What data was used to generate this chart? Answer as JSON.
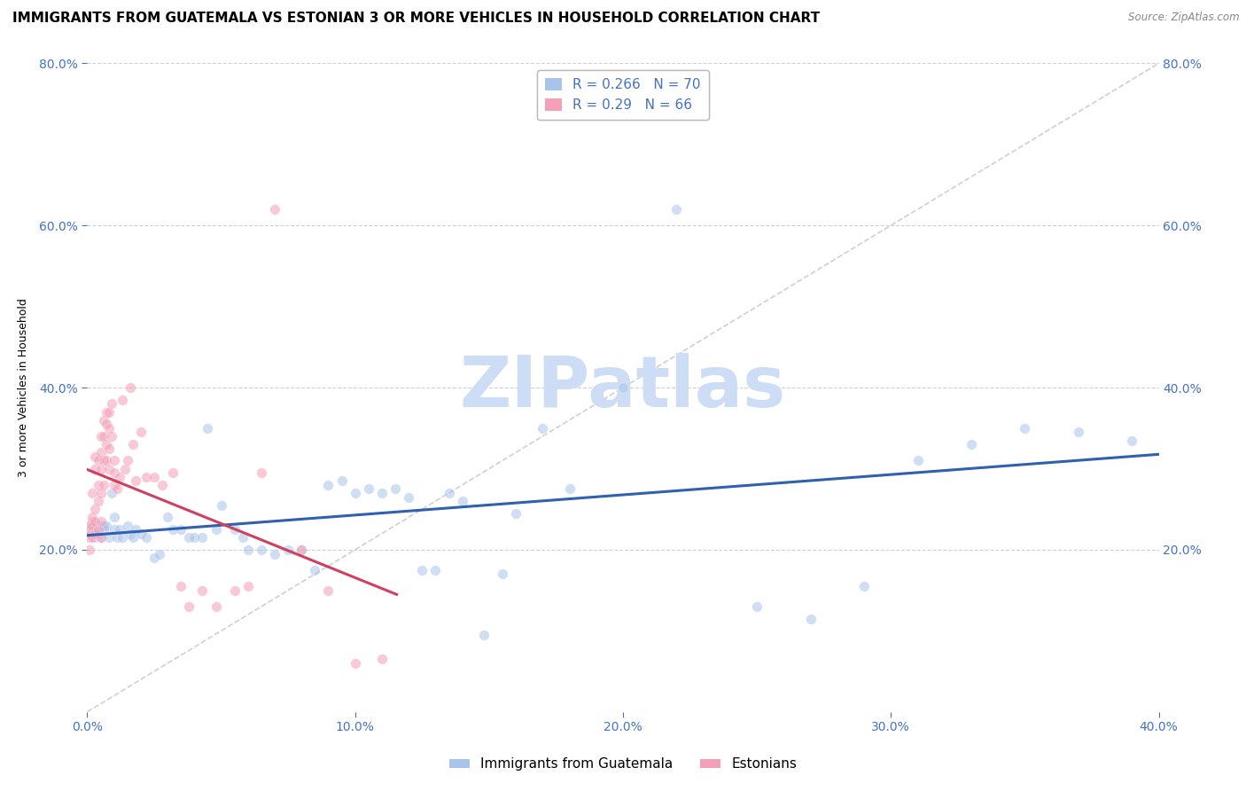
{
  "title": "IMMIGRANTS FROM GUATEMALA VS ESTONIAN 3 OR MORE VEHICLES IN HOUSEHOLD CORRELATION CHART",
  "source": "Source: ZipAtlas.com",
  "ylabel": "3 or more Vehicles in Household",
  "xlim": [
    0.0,
    0.4
  ],
  "ylim": [
    0.0,
    0.8
  ],
  "xticks": [
    0.0,
    0.1,
    0.2,
    0.3,
    0.4
  ],
  "yticks": [
    0.2,
    0.4,
    0.6,
    0.8
  ],
  "xticklabels": [
    "0.0%",
    "10.0%",
    "20.0%",
    "30.0%",
    "40.0%"
  ],
  "yticklabels": [
    "20.0%",
    "40.0%",
    "60.0%",
    "80.0%"
  ],
  "guatemala_color": "#a8c4e8",
  "guatemala_line_color": "#3060b0",
  "guatemala_R": 0.266,
  "guatemala_N": 70,
  "estonian_color": "#f4a0b8",
  "estonian_line_color": "#d04060",
  "estonian_R": 0.29,
  "estonian_N": 66,
  "guatemala_x": [
    0.001,
    0.001,
    0.002,
    0.002,
    0.003,
    0.003,
    0.004,
    0.005,
    0.005,
    0.006,
    0.006,
    0.007,
    0.008,
    0.009,
    0.01,
    0.01,
    0.011,
    0.012,
    0.013,
    0.015,
    0.016,
    0.017,
    0.018,
    0.02,
    0.022,
    0.025,
    0.027,
    0.03,
    0.032,
    0.035,
    0.038,
    0.04,
    0.043,
    0.045,
    0.048,
    0.05,
    0.055,
    0.058,
    0.06,
    0.065,
    0.07,
    0.075,
    0.08,
    0.085,
    0.09,
    0.095,
    0.1,
    0.105,
    0.11,
    0.115,
    0.12,
    0.125,
    0.13,
    0.135,
    0.14,
    0.148,
    0.155,
    0.16,
    0.17,
    0.18,
    0.2,
    0.22,
    0.25,
    0.27,
    0.29,
    0.31,
    0.33,
    0.35,
    0.37,
    0.39
  ],
  "guatemala_y": [
    0.225,
    0.23,
    0.22,
    0.225,
    0.225,
    0.215,
    0.22,
    0.23,
    0.215,
    0.225,
    0.23,
    0.23,
    0.215,
    0.27,
    0.24,
    0.225,
    0.215,
    0.225,
    0.215,
    0.23,
    0.22,
    0.215,
    0.225,
    0.22,
    0.215,
    0.19,
    0.195,
    0.24,
    0.225,
    0.225,
    0.215,
    0.215,
    0.215,
    0.35,
    0.225,
    0.255,
    0.225,
    0.215,
    0.2,
    0.2,
    0.195,
    0.2,
    0.2,
    0.175,
    0.28,
    0.285,
    0.27,
    0.275,
    0.27,
    0.275,
    0.265,
    0.175,
    0.175,
    0.27,
    0.26,
    0.095,
    0.17,
    0.245,
    0.35,
    0.275,
    0.4,
    0.62,
    0.13,
    0.115,
    0.155,
    0.31,
    0.33,
    0.35,
    0.345,
    0.335
  ],
  "estonian_x": [
    0.001,
    0.001,
    0.001,
    0.001,
    0.002,
    0.002,
    0.002,
    0.002,
    0.002,
    0.003,
    0.003,
    0.003,
    0.003,
    0.003,
    0.004,
    0.004,
    0.004,
    0.004,
    0.005,
    0.005,
    0.005,
    0.005,
    0.005,
    0.005,
    0.006,
    0.006,
    0.006,
    0.006,
    0.007,
    0.007,
    0.007,
    0.007,
    0.008,
    0.008,
    0.008,
    0.008,
    0.009,
    0.009,
    0.01,
    0.01,
    0.01,
    0.011,
    0.012,
    0.013,
    0.014,
    0.015,
    0.016,
    0.017,
    0.018,
    0.02,
    0.022,
    0.025,
    0.028,
    0.032,
    0.035,
    0.038,
    0.043,
    0.048,
    0.055,
    0.06,
    0.065,
    0.07,
    0.08,
    0.09,
    0.1,
    0.11
  ],
  "estonian_y": [
    0.23,
    0.215,
    0.22,
    0.2,
    0.235,
    0.23,
    0.215,
    0.27,
    0.24,
    0.25,
    0.235,
    0.3,
    0.315,
    0.22,
    0.31,
    0.28,
    0.26,
    0.225,
    0.34,
    0.32,
    0.3,
    0.27,
    0.235,
    0.215,
    0.36,
    0.34,
    0.31,
    0.28,
    0.37,
    0.355,
    0.33,
    0.31,
    0.37,
    0.35,
    0.325,
    0.3,
    0.38,
    0.34,
    0.31,
    0.295,
    0.28,
    0.275,
    0.29,
    0.385,
    0.3,
    0.31,
    0.4,
    0.33,
    0.285,
    0.345,
    0.29,
    0.29,
    0.28,
    0.295,
    0.155,
    0.13,
    0.15,
    0.13,
    0.15,
    0.155,
    0.295,
    0.62,
    0.2,
    0.15,
    0.06,
    0.065
  ],
  "diag_line_x": [
    0.0,
    0.4
  ],
  "diag_line_y": [
    0.0,
    0.8
  ],
  "watermark": "ZIPatlas",
  "watermark_color": "#ccddf5",
  "background_color": "#ffffff",
  "grid_color": "#cccccc",
  "tick_color": "#4472c4",
  "diag_line_color": "#d0d0d0",
  "title_fontsize": 11,
  "axis_label_fontsize": 9,
  "tick_fontsize": 10,
  "legend_fontsize": 11,
  "marker_size": 70,
  "marker_alpha": 0.55
}
